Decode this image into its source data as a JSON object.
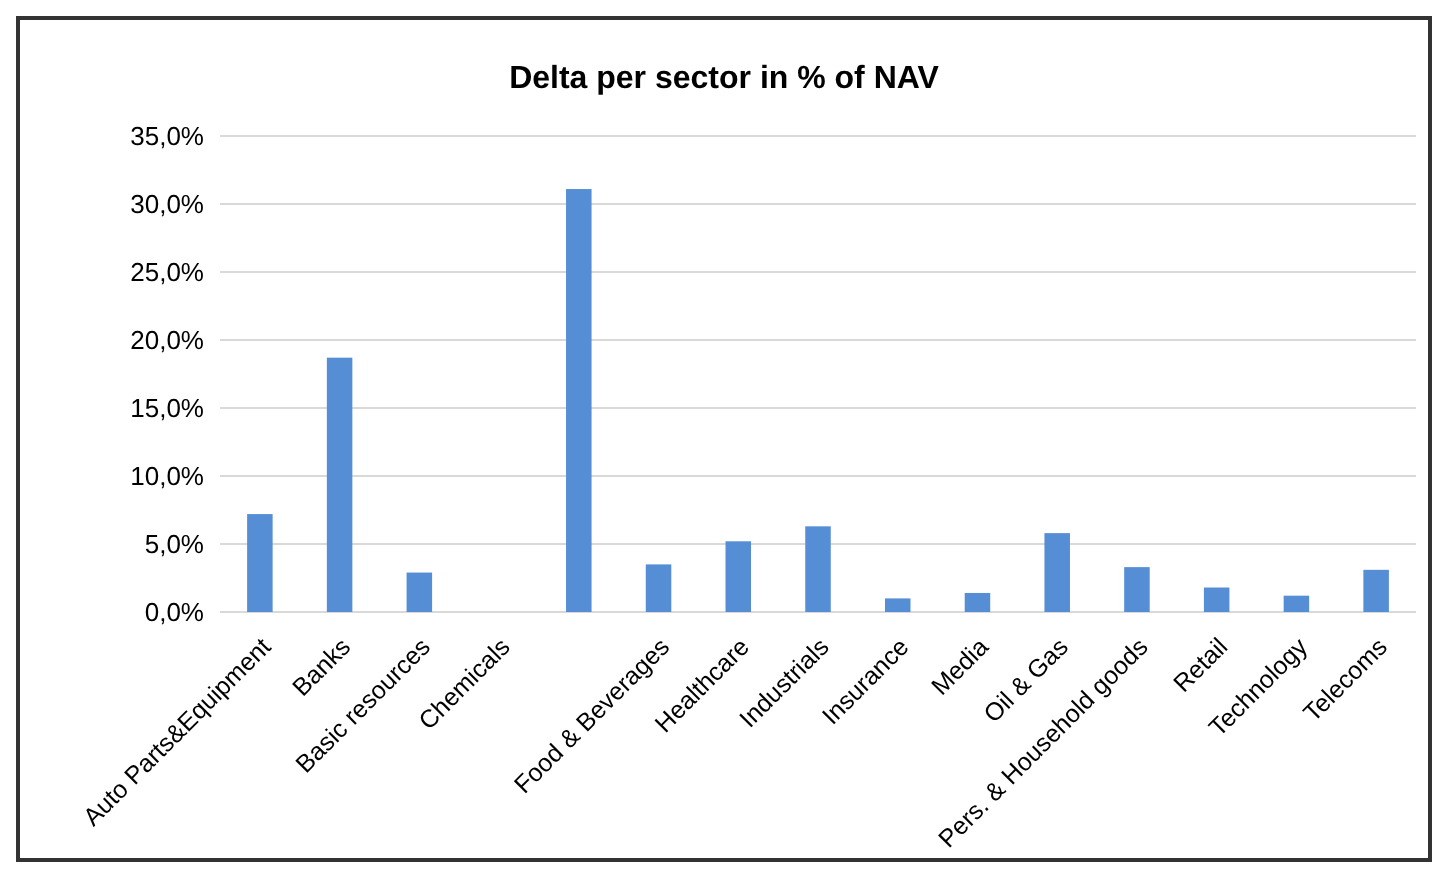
{
  "chart_data": {
    "type": "bar",
    "title": "Delta per sector in % of NAV",
    "categories": [
      "Auto Parts&Equipment",
      "Banks",
      "Basic resources",
      "Chemicals",
      null,
      "Food & Beverages",
      "Healthcare",
      "Industrials",
      "Insurance",
      "Media",
      "Oil & Gas",
      "Pers. & Household goods",
      "Retail",
      "Technology",
      "Telecoms"
    ],
    "values": [
      7.2,
      18.7,
      2.9,
      0,
      31.1,
      3.5,
      5.2,
      6.3,
      1.0,
      1.4,
      5.8,
      3.3,
      1.8,
      1.2,
      3.1
    ],
    "color": "#558ed5",
    "ylim": [
      0,
      35
    ],
    "yticks": [
      {
        "value": 0,
        "label": "0,0%"
      },
      {
        "value": 5,
        "label": "5,0%"
      },
      {
        "value": 10,
        "label": "10,0%"
      },
      {
        "value": 15,
        "label": "15,0%"
      },
      {
        "value": 20,
        "label": "20,0%"
      },
      {
        "value": 25,
        "label": "25,0%"
      },
      {
        "value": 30,
        "label": "30,0%"
      },
      {
        "value": 35,
        "label": "35,0%"
      }
    ],
    "grid": "y"
  }
}
